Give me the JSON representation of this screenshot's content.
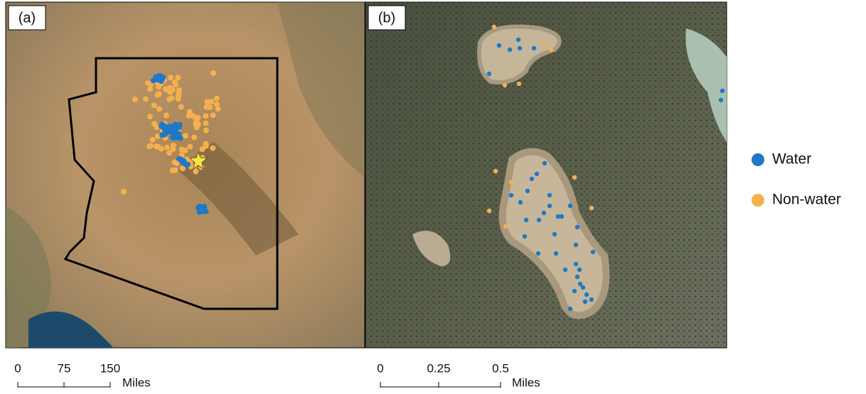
{
  "panels": [
    {
      "label": "(a)",
      "scale_bar": {
        "ticks": [
          "0",
          "75",
          "150"
        ],
        "unit": "Miles"
      }
    },
    {
      "label": "(b)",
      "scale_bar": {
        "ticks": [
          "0",
          "0.25",
          "0.5"
        ],
        "unit": "Miles"
      }
    }
  ],
  "legend": [
    {
      "label": "Water",
      "color": "#1f78c8"
    },
    {
      "label": "Non-water",
      "color": "#f5b04e"
    }
  ]
}
